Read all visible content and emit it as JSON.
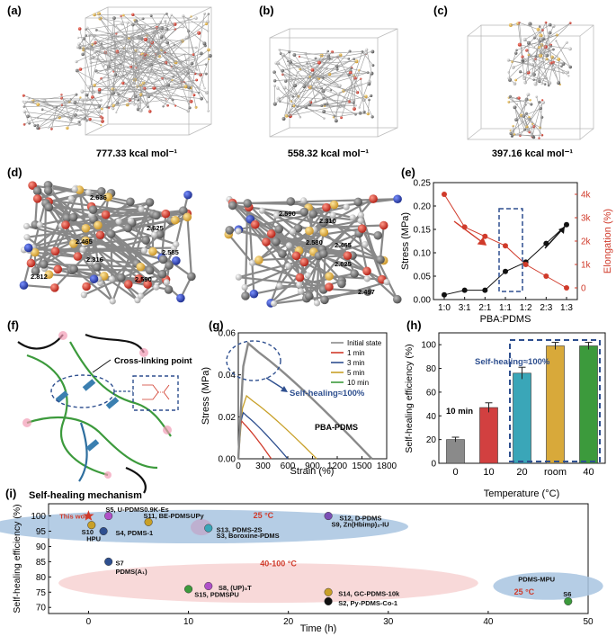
{
  "colors": {
    "black": "#111111",
    "red": "#d03a2a",
    "blue": "#2e4f8f",
    "green": "#3c9a3c",
    "gray": "#8a8a8a",
    "orange": "#c8a028",
    "ellipse_blue": "#a8c4e0",
    "ellipse_pink": "#f7d2d2",
    "purple": "#7b4fb5"
  },
  "panels": {
    "a": {
      "label": "(a)",
      "energy": "777.33 kcal mol⁻¹"
    },
    "b": {
      "label": "(b)",
      "energy": "558.32 kcal mol⁻¹"
    },
    "c": {
      "label": "(c)",
      "energy": "397.16 kcal mol⁻¹"
    },
    "d": {
      "label": "(d)",
      "left_distances": [
        "2.636",
        "2.625",
        "2.465",
        "2.585",
        "2.316",
        "2.812",
        "2.590"
      ],
      "right_distances": [
        "2.590",
        "2.310",
        "2.580",
        "2.465",
        "2.625",
        "2.497"
      ]
    },
    "f": {
      "label": "(f)",
      "cross_link": "Cross-linking point",
      "caption": "Self-healing mechanism"
    },
    "i": {
      "label": "(i)"
    }
  },
  "chart_data": [
    {
      "id": "e",
      "type": "line",
      "label": "(e)",
      "categories": [
        "1:0",
        "3:1",
        "2:1",
        "1:1",
        "1:2",
        "2:3",
        "1:3"
      ],
      "xlabel": "PBA:PDMS",
      "ylabel": "Stress (MPa)",
      "ylabel2": "Elongation (%)",
      "ylim": [
        0,
        0.25
      ],
      "y2lim": [
        -500,
        4500
      ],
      "yticks": [
        "0.00",
        "0.05",
        "0.10",
        "0.15",
        "0.20",
        "0.25"
      ],
      "y2ticks": [
        "0",
        "1k",
        "2k",
        "3k",
        "4k"
      ],
      "series": [
        {
          "axis": "left",
          "color": "#111111",
          "values": [
            0.01,
            0.02,
            0.02,
            0.06,
            0.08,
            0.12,
            0.16
          ]
        },
        {
          "axis": "right",
          "color": "#d03a2a",
          "values": [
            4000,
            2600,
            2200,
            1800,
            1000,
            500,
            0
          ]
        }
      ]
    },
    {
      "id": "g",
      "type": "line",
      "label": "(g)",
      "xlabel": "Strain (%)",
      "ylabel": "Stress (MPa)",
      "xticks": [
        "0",
        "300",
        "600",
        "900",
        "1200",
        "1500",
        "1800"
      ],
      "yticks": [
        "0.00",
        "0.02",
        "0.04",
        "0.06"
      ],
      "xlim": [
        0,
        1800
      ],
      "ylim": [
        0,
        0.06
      ],
      "annotation": "Self-healing≈100%",
      "material": "PBA-PDMS",
      "series": [
        {
          "name": "Initial state",
          "color": "#8a8a8a",
          "peak_x": 120,
          "peak_y": 0.055,
          "end_x": 1620
        },
        {
          "name": "1 min",
          "color": "#d03a2a",
          "peak_x": 40,
          "peak_y": 0.018,
          "end_x": 400
        },
        {
          "name": "3 min",
          "color": "#2e4f8f",
          "peak_x": 60,
          "peak_y": 0.022,
          "end_x": 600
        },
        {
          "name": "5 min",
          "color": "#c8a028",
          "peak_x": 100,
          "peak_y": 0.03,
          "end_x": 950
        },
        {
          "name": "10 min",
          "color": "#3c9a3c",
          "peak_x": 120,
          "peak_y": 0.055,
          "end_x": 1620
        }
      ]
    },
    {
      "id": "h",
      "type": "bar",
      "label": "(h)",
      "categories": [
        "0",
        "10",
        "20",
        "room",
        "40"
      ],
      "values": [
        20,
        47,
        76,
        99,
        99
      ],
      "errors": [
        2,
        4,
        5,
        3,
        3
      ],
      "colors": [
        "#8a8a8a",
        "#d24040",
        "#3aa6b8",
        "#d8a93a",
        "#3c9a3c"
      ],
      "xlabel": "Temperature (°C)",
      "ylabel": "Self-healing efficiency (%)",
      "ylim": [
        0,
        110
      ],
      "yticks": [
        "0",
        "20",
        "40",
        "60",
        "80",
        "100"
      ],
      "annotations": [
        "Self-healing≈100%",
        "10 min"
      ]
    },
    {
      "id": "i",
      "type": "scatter",
      "label": "(i)",
      "xlabel": "Time (h)",
      "ylabel": "Self-healing efficiency (%)",
      "xlim": [
        -4,
        50
      ],
      "ylim": [
        68,
        104
      ],
      "xticks": [
        "0",
        "10",
        "20",
        "30",
        "40",
        "50"
      ],
      "yticks": [
        "70",
        "75",
        "80",
        "85",
        "90",
        "95",
        "100"
      ],
      "regions": [
        {
          "text": "25 °C",
          "color": "#a8c4e0"
        },
        {
          "text": "40-100 °C",
          "color": "#f7d2d2"
        },
        {
          "text": "25 °C",
          "color": "#a8c4e0"
        }
      ],
      "points": [
        {
          "name": "This work",
          "x": 0,
          "y": 100,
          "color": "#d03a2a",
          "star": true
        },
        {
          "name": "S5, U-PDMS0.9K-Es",
          "x": 2,
          "y": 100,
          "color": "#b050c8"
        },
        {
          "name": "S10",
          "x": 0.3,
          "y": 97,
          "color": "#c8a028"
        },
        {
          "name": "HPU",
          "x": 0.3,
          "y": 94,
          "color": "#c8a028",
          "hidden_marker": true
        },
        {
          "name": "S11, BE-PDMS",
          "x": 6,
          "y": 98,
          "color": "#c8a028"
        },
        {
          "name": "-UPy",
          "x": 9,
          "y": 99,
          "color": "#c8a028",
          "hidden_marker": true
        },
        {
          "name": "S4, PDMS-1",
          "x": 1.5,
          "y": 95,
          "color": "#2e4f8f"
        },
        {
          "name": "S13, PDMS-2S",
          "x": 12,
          "y": 96,
          "color": "#3aa6b8"
        },
        {
          "name": "S3, Boroxine-PDMS",
          "x": 12,
          "y": 95,
          "color": "#3aa6b8",
          "hidden_marker": true
        },
        {
          "name": "S12, D-PDMS",
          "x": 24,
          "y": 100,
          "color": "#7b4fb5"
        },
        {
          "name": "S9, Zn(Hbimp)₂-IU",
          "x": 24,
          "y": 99,
          "color": "#7b4fb5",
          "hidden_marker": true
        },
        {
          "name": "S7",
          "x": 2,
          "y": 85,
          "color": "#2e4f8f"
        },
        {
          "name": "PDMS(A₁)",
          "x": 2,
          "y": 83,
          "color": "#2e4f8f",
          "hidden_marker": true
        },
        {
          "name": "S8, (UP)₃T",
          "x": 12,
          "y": 77,
          "color": "#b050c8"
        },
        {
          "name": "S15, PDMSPU",
          "x": 10,
          "y": 76,
          "color": "#3c9a3c"
        },
        {
          "name": "S14, GC-PDMS-10k",
          "x": 24,
          "y": 75,
          "color": "#c8a028"
        },
        {
          "name": "S2, Py-PDMS-Co-1",
          "x": 24,
          "y": 72,
          "color": "#111111"
        },
        {
          "name": "PDMS-MPU",
          "x": 47.5,
          "y": 77,
          "color": "#3aa6b8",
          "hidden_marker": true
        },
        {
          "name": "S6",
          "x": 48,
          "y": 72,
          "color": "#3c9a3c"
        }
      ]
    }
  ]
}
